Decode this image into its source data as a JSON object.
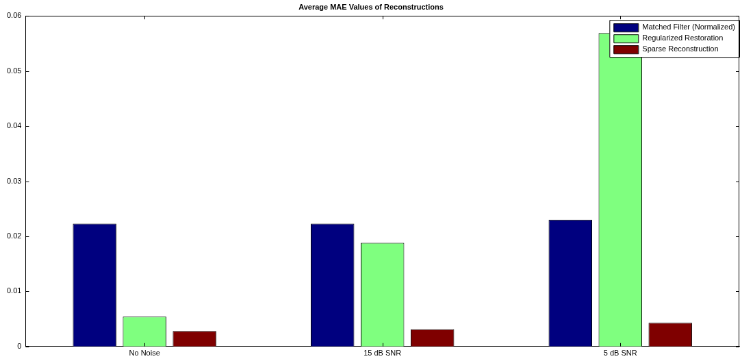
{
  "chart_data": {
    "type": "bar",
    "title": "Average MAE Values of Reconstructions",
    "categories": [
      "No Noise",
      "15 dB SNR",
      "5 dB SNR"
    ],
    "series": [
      {
        "name": "Matched Filter (Normalized)",
        "color": "#00007f",
        "values": [
          0.0223,
          0.0223,
          0.023
        ]
      },
      {
        "name": "Regularized Restoration",
        "color": "#7fff7f",
        "values": [
          0.0054,
          0.0188,
          0.0569
        ]
      },
      {
        "name": "Sparse Reconstruction",
        "color": "#7f0000",
        "values": [
          0.0028,
          0.0031,
          0.0043
        ]
      }
    ],
    "ylim": [
      0,
      0.06
    ],
    "yticks": [
      0,
      0.01,
      0.02,
      0.03,
      0.04,
      0.05,
      0.06
    ],
    "grid": false,
    "legend": "top right"
  }
}
